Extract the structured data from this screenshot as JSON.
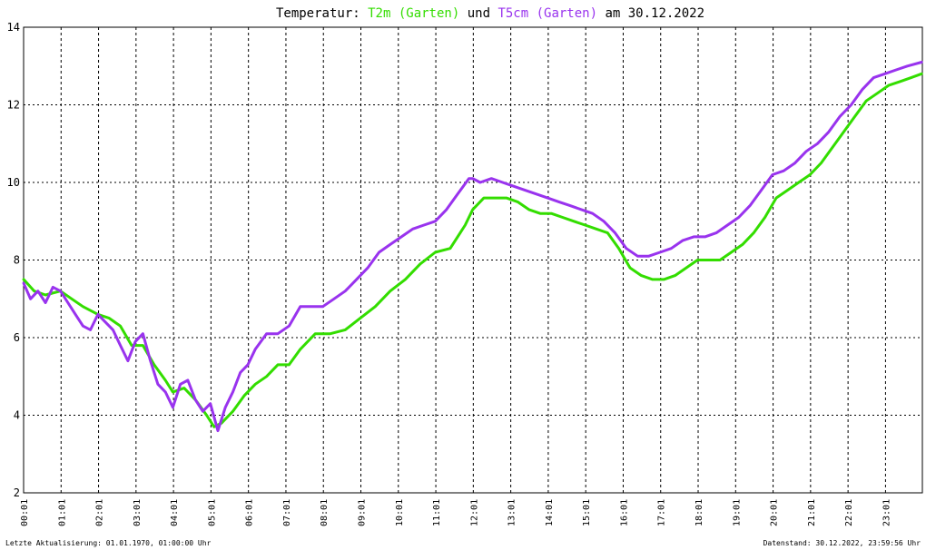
{
  "header": {
    "title_prefix": "Temperatur: ",
    "series1_label": "T2m (Garten)",
    "connector": " und ",
    "series2_label": "T5cm (Garten)",
    "title_suffix": " am 30.12.2022"
  },
  "footer": {
    "left": "Letzte Aktualisierung: 01.01.1970, 01:00:00 Uhr",
    "right": "Datenstand: 30.12.2022, 23:59:56 Uhr"
  },
  "colors": {
    "series1": "#33dd00",
    "series2": "#9933ee",
    "grid": "#000000",
    "background": "#ffffff"
  },
  "chart_data": {
    "type": "line",
    "title": "Temperatur: T2m (Garten) und T5cm (Garten) am 30.12.2022",
    "xlabel": "",
    "ylabel": "",
    "ylim": [
      2,
      14
    ],
    "yticks": [
      "2",
      "4",
      "6",
      "8",
      "10",
      "12",
      "14"
    ],
    "xticks": [
      "00:01",
      "01:01",
      "02:01",
      "03:01",
      "04:01",
      "05:01",
      "06:01",
      "07:01",
      "08:01",
      "09:01",
      "10:01",
      "11:01",
      "12:01",
      "13:01",
      "14:01",
      "15:01",
      "16:01",
      "17:01",
      "18:01",
      "19:01",
      "20:01",
      "21:01",
      "22:01",
      "23:01"
    ],
    "xlim_hours": [
      0.0167,
      24.0
    ],
    "grid": true,
    "legend": "in title",
    "series": [
      {
        "name": "T2m (Garten)",
        "x": [
          0.02,
          0.3,
          0.6,
          1.0,
          1.3,
          1.6,
          2.0,
          2.3,
          2.6,
          2.9,
          3.2,
          3.5,
          3.8,
          4.0,
          4.3,
          4.6,
          4.9,
          5.1,
          5.3,
          5.6,
          5.9,
          6.2,
          6.5,
          6.8,
          7.1,
          7.4,
          7.8,
          8.2,
          8.6,
          9.0,
          9.4,
          9.8,
          10.2,
          10.6,
          11.0,
          11.4,
          11.8,
          12.0,
          12.3,
          12.6,
          12.9,
          13.2,
          13.5,
          13.8,
          14.1,
          14.4,
          14.7,
          15.0,
          15.3,
          15.6,
          15.9,
          16.2,
          16.5,
          16.8,
          17.1,
          17.4,
          17.7,
          18.0,
          18.3,
          18.6,
          18.9,
          19.2,
          19.5,
          19.8,
          20.1,
          20.4,
          20.7,
          21.0,
          21.3,
          21.6,
          21.9,
          22.2,
          22.5,
          22.8,
          23.1,
          23.4,
          23.7,
          23.98
        ],
        "y": [
          7.5,
          7.2,
          7.1,
          7.2,
          7.0,
          6.8,
          6.6,
          6.5,
          6.3,
          5.8,
          5.8,
          5.3,
          4.9,
          4.6,
          4.7,
          4.4,
          4.0,
          3.7,
          3.8,
          4.1,
          4.5,
          4.8,
          5.0,
          5.3,
          5.3,
          5.7,
          6.1,
          6.1,
          6.2,
          6.5,
          6.8,
          7.2,
          7.5,
          7.9,
          8.2,
          8.3,
          8.9,
          9.3,
          9.6,
          9.6,
          9.6,
          9.5,
          9.3,
          9.2,
          9.2,
          9.1,
          9.0,
          8.9,
          8.8,
          8.7,
          8.3,
          7.8,
          7.6,
          7.5,
          7.5,
          7.6,
          7.8,
          8.0,
          8.0,
          8.0,
          8.2,
          8.4,
          8.7,
          9.1,
          9.6,
          9.8,
          10.0,
          10.2,
          10.5,
          10.9,
          11.3,
          11.7,
          12.1,
          12.3,
          12.5,
          12.6,
          12.7,
          12.8
        ]
      },
      {
        "name": "T5cm (Garten)",
        "x": [
          0.02,
          0.2,
          0.4,
          0.6,
          0.8,
          1.0,
          1.2,
          1.4,
          1.6,
          1.8,
          2.0,
          2.2,
          2.4,
          2.6,
          2.8,
          3.0,
          3.2,
          3.4,
          3.6,
          3.8,
          4.0,
          4.2,
          4.4,
          4.6,
          4.8,
          5.0,
          5.2,
          5.4,
          5.6,
          5.8,
          6.0,
          6.2,
          6.5,
          6.8,
          7.1,
          7.4,
          7.7,
          8.0,
          8.3,
          8.6,
          8.9,
          9.2,
          9.5,
          9.8,
          10.1,
          10.4,
          10.7,
          11.0,
          11.3,
          11.6,
          11.9,
          12.0,
          12.2,
          12.5,
          12.8,
          13.1,
          13.4,
          13.7,
          14.0,
          14.3,
          14.6,
          14.9,
          15.2,
          15.5,
          15.8,
          16.1,
          16.4,
          16.7,
          17.0,
          17.3,
          17.6,
          17.9,
          18.2,
          18.5,
          18.8,
          19.1,
          19.4,
          19.7,
          20.0,
          20.3,
          20.6,
          20.9,
          21.2,
          21.5,
          21.8,
          22.1,
          22.4,
          22.7,
          23.0,
          23.3,
          23.6,
          23.98
        ],
        "y": [
          7.4,
          7.0,
          7.2,
          6.9,
          7.3,
          7.2,
          6.9,
          6.6,
          6.3,
          6.2,
          6.6,
          6.4,
          6.2,
          5.8,
          5.4,
          5.9,
          6.1,
          5.4,
          4.8,
          4.6,
          4.2,
          4.8,
          4.9,
          4.4,
          4.1,
          4.3,
          3.6,
          4.2,
          4.6,
          5.1,
          5.3,
          5.7,
          6.1,
          6.1,
          6.3,
          6.8,
          6.8,
          6.8,
          7.0,
          7.2,
          7.5,
          7.8,
          8.2,
          8.4,
          8.6,
          8.8,
          8.9,
          9.0,
          9.3,
          9.7,
          10.1,
          10.1,
          10.0,
          10.1,
          10.0,
          9.9,
          9.8,
          9.7,
          9.6,
          9.5,
          9.4,
          9.3,
          9.2,
          9.0,
          8.7,
          8.3,
          8.1,
          8.1,
          8.2,
          8.3,
          8.5,
          8.6,
          8.6,
          8.7,
          8.9,
          9.1,
          9.4,
          9.8,
          10.2,
          10.3,
          10.5,
          10.8,
          11.0,
          11.3,
          11.7,
          12.0,
          12.4,
          12.7,
          12.8,
          12.9,
          13.0,
          13.1
        ]
      }
    ]
  }
}
